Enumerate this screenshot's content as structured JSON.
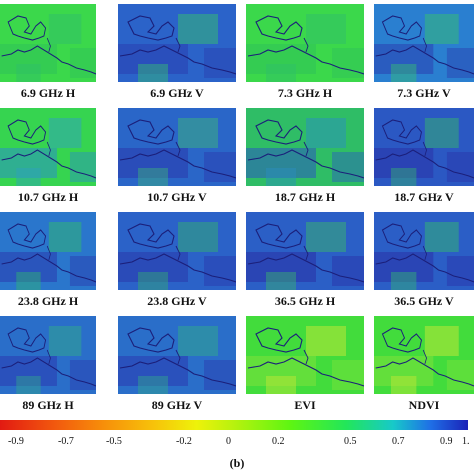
{
  "panels": [
    {
      "caption": "6.9 GHz H",
      "bg": "#3bd84b",
      "dark": "#2fc25a",
      "blob": "#2fbe6a"
    },
    {
      "caption": "6.9 GHz V",
      "bg": "#2b63c9",
      "dark": "#2a3fb0",
      "blob": "#35c070"
    },
    {
      "caption": "7.3 GHz H",
      "bg": "#3bd84b",
      "dark": "#2fc25a",
      "blob": "#2fbe6a"
    },
    {
      "caption": "7.3 GHz V",
      "bg": "#2a7fd0",
      "dark": "#2a3fb0",
      "blob": "#35c070"
    },
    {
      "caption": "10.7 GHz H",
      "bg": "#36d450",
      "dark": "#2a8fc6",
      "blob": "#2f9fc0"
    },
    {
      "caption": "10.7 GHz V",
      "bg": "#2a66c8",
      "dark": "#2a38ad",
      "blob": "#3bb47b"
    },
    {
      "caption": "18.7 GHz H",
      "bg": "#2fbd66",
      "dark": "#2a5ac0",
      "blob": "#2a8fc0"
    },
    {
      "caption": "18.7 GHz V",
      "bg": "#2b58c3",
      "dark": "#2a33a8",
      "blob": "#36b46e"
    },
    {
      "caption": "23.8 GHz H",
      "bg": "#2a76cc",
      "dark": "#2a3aae",
      "blob": "#2fb96e"
    },
    {
      "caption": "23.8 GHz V",
      "bg": "#2b62c8",
      "dark": "#2a38ab",
      "blob": "#33ae72"
    },
    {
      "caption": "36.5 GHz H",
      "bg": "#2b5fc6",
      "dark": "#2a2fa6",
      "blob": "#3ab56b"
    },
    {
      "caption": "36.5 GHz V",
      "bg": "#2b5ec6",
      "dark": "#2a31a8",
      "blob": "#33b870"
    },
    {
      "caption": "89 GHz H",
      "bg": "#2a6ec9",
      "dark": "#2a3ab0",
      "blob": "#30a98c"
    },
    {
      "caption": "89 GHz V",
      "bg": "#2a6ec9",
      "dark": "#2a3ab0",
      "blob": "#30a98c"
    },
    {
      "caption": "EVI",
      "bg": "#42dc3c",
      "dark": "#7fe23a",
      "blob": "#c8e836"
    },
    {
      "caption": "NDVI",
      "bg": "#42dc3c",
      "dark": "#7fe23a",
      "blob": "#c8e836"
    }
  ],
  "colorbar": {
    "ticks": [
      "-0.9",
      "-0.7",
      "-0.5",
      "-0.2",
      "0",
      "0.2",
      "0.5",
      "0.7",
      "0.9",
      "1."
    ]
  },
  "figure_label": "(b)"
}
